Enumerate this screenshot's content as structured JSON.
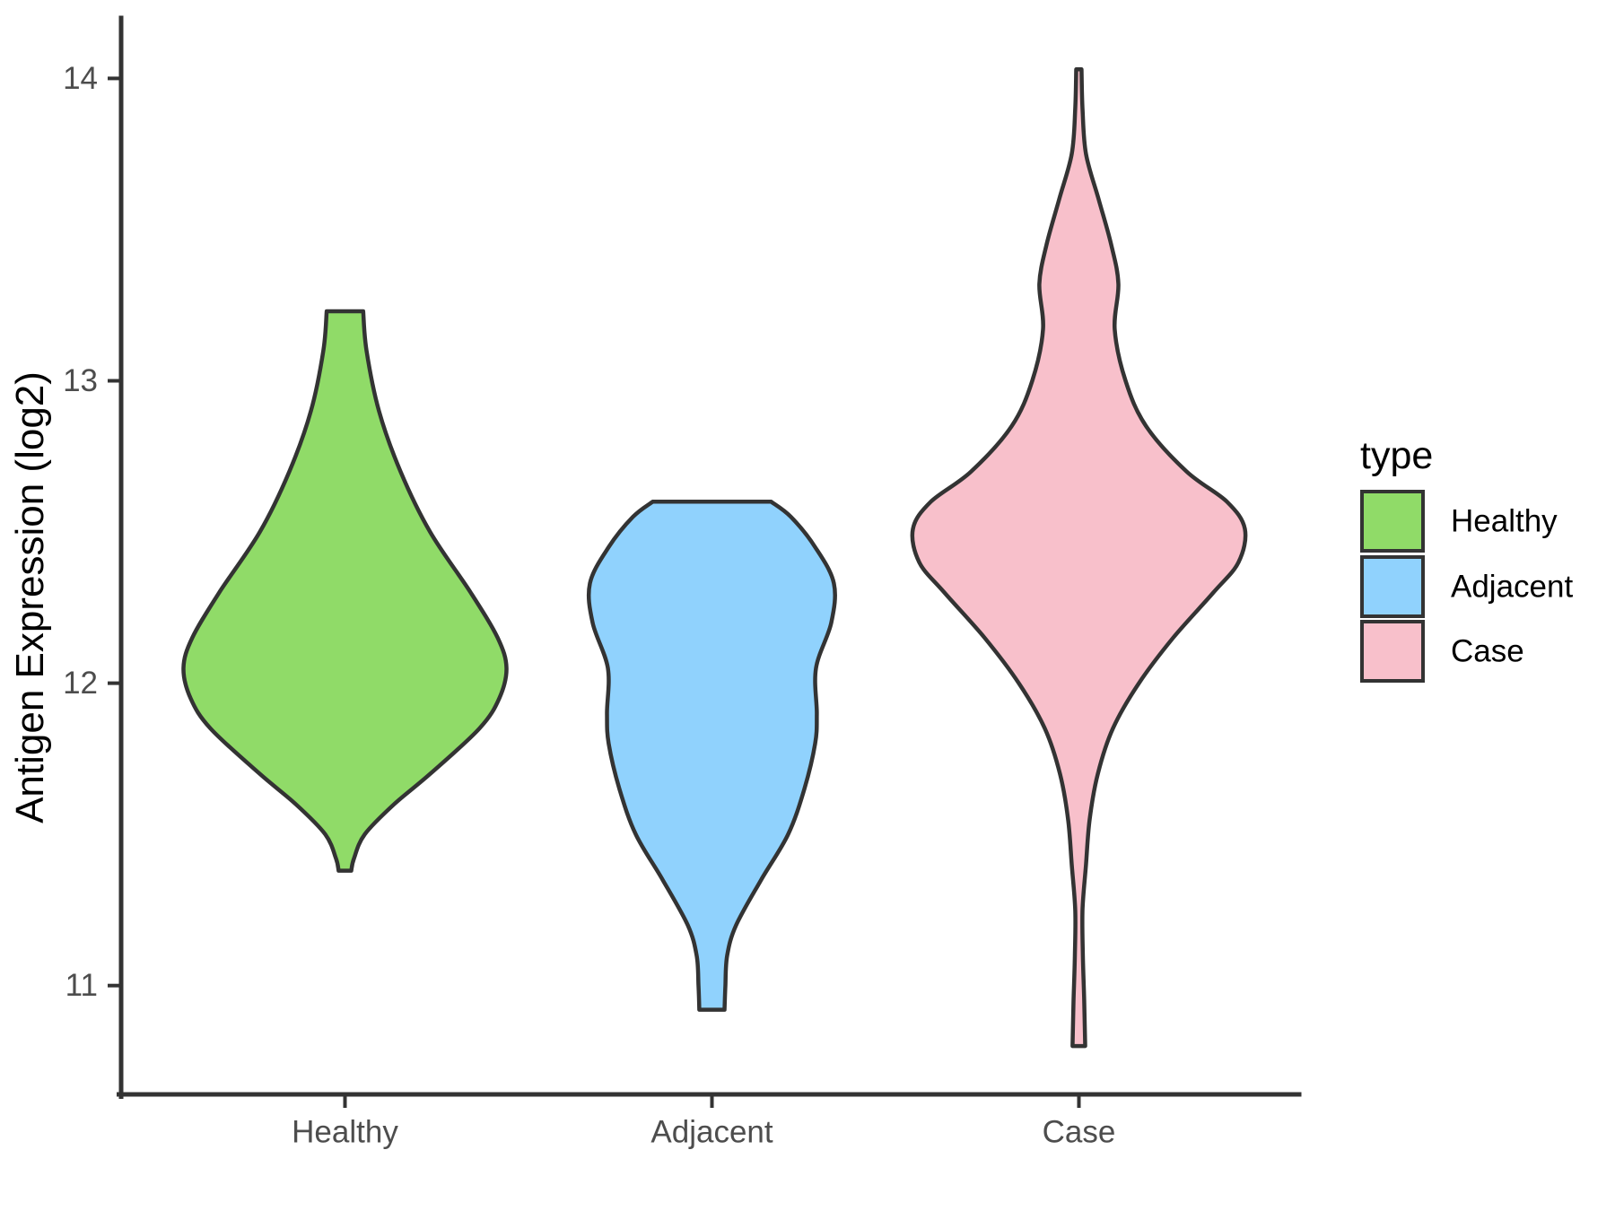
{
  "chart_data": {
    "type": "violin",
    "title": "",
    "xlabel": "",
    "ylabel": "Antigen Expression (log2)",
    "categories": [
      "Healthy",
      "Adjacent",
      "Case"
    ],
    "yticks": [
      11,
      12,
      13,
      14
    ],
    "ylim": [
      10.64,
      14.2
    ],
    "grid": false,
    "background_color": "#FFFFFF",
    "outline_color": "#333333",
    "axis_color": "#333333",
    "tick_label_color": "#4D4D4D",
    "text_color": "#000000",
    "legend": {
      "title": "type",
      "position": "right",
      "entries": [
        {
          "label": "Healthy",
          "color": "#90DB68"
        },
        {
          "label": "Adjacent",
          "color": "#90D2FD"
        },
        {
          "label": "Case",
          "color": "#F8C0CB"
        }
      ]
    },
    "series": [
      {
        "name": "Healthy",
        "color": "#90DB68",
        "min": 11.38,
        "max": 13.23,
        "peak_value": 12.05,
        "profile": [
          [
            13.23,
            0.11
          ],
          [
            13.1,
            0.13
          ],
          [
            12.9,
            0.205
          ],
          [
            12.7,
            0.335
          ],
          [
            12.5,
            0.513
          ],
          [
            12.3,
            0.757
          ],
          [
            12.15,
            0.92
          ],
          [
            12.05,
            0.973
          ],
          [
            11.95,
            0.93
          ],
          [
            11.85,
            0.81
          ],
          [
            11.7,
            0.513
          ],
          [
            11.6,
            0.297
          ],
          [
            11.5,
            0.119
          ],
          [
            11.42,
            0.054
          ],
          [
            11.38,
            0.038
          ]
        ]
      },
      {
        "name": "Adjacent",
        "color": "#90D2FD",
        "min": 10.92,
        "max": 12.6,
        "peak_value": 12.33,
        "profile": [
          [
            12.6,
            0.357
          ],
          [
            12.55,
            0.476
          ],
          [
            12.45,
            0.622
          ],
          [
            12.33,
            0.735
          ],
          [
            12.2,
            0.719
          ],
          [
            12.05,
            0.627
          ],
          [
            11.9,
            0.632
          ],
          [
            11.8,
            0.622
          ],
          [
            11.65,
            0.557
          ],
          [
            11.5,
            0.459
          ],
          [
            11.35,
            0.297
          ],
          [
            11.2,
            0.146
          ],
          [
            11.1,
            0.092
          ],
          [
            11.0,
            0.081
          ],
          [
            10.92,
            0.076
          ]
        ]
      },
      {
        "name": "Case",
        "color": "#F8C0CB",
        "min": 10.8,
        "max": 14.03,
        "peak_value": 12.51,
        "profile": [
          [
            14.03,
            0.016
          ],
          [
            13.9,
            0.022
          ],
          [
            13.75,
            0.043
          ],
          [
            13.6,
            0.119
          ],
          [
            13.45,
            0.195
          ],
          [
            13.32,
            0.238
          ],
          [
            13.17,
            0.216
          ],
          [
            13.0,
            0.281
          ],
          [
            12.85,
            0.405
          ],
          [
            12.7,
            0.649
          ],
          [
            12.6,
            0.892
          ],
          [
            12.51,
            1.0
          ],
          [
            12.4,
            0.962
          ],
          [
            12.3,
            0.811
          ],
          [
            12.15,
            0.568
          ],
          [
            12.0,
            0.362
          ],
          [
            11.85,
            0.205
          ],
          [
            11.7,
            0.114
          ],
          [
            11.55,
            0.065
          ],
          [
            11.4,
            0.043
          ],
          [
            11.25,
            0.022
          ],
          [
            11.1,
            0.024
          ],
          [
            10.95,
            0.032
          ],
          [
            10.8,
            0.038
          ]
        ]
      }
    ]
  }
}
